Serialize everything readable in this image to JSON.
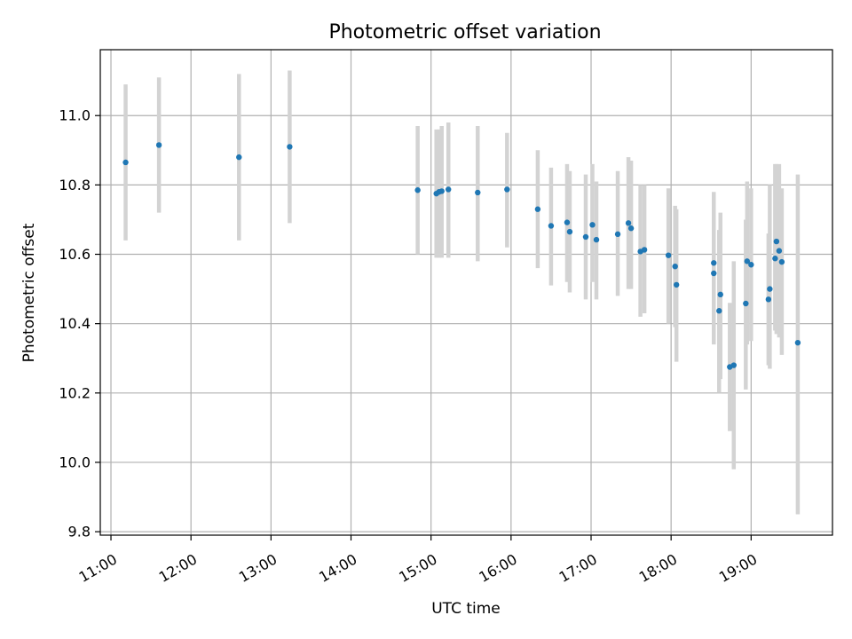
{
  "chart_data": {
    "type": "scatter",
    "title": "Photometric offset variation",
    "xlabel": "UTC time",
    "ylabel": "Photometric offset",
    "x_ticks": [
      "11:00",
      "12:00",
      "13:00",
      "14:00",
      "15:00",
      "16:00",
      "17:00",
      "18:00",
      "19:00"
    ],
    "y_ticks": [
      "9.8",
      "10.0",
      "10.2",
      "10.4",
      "10.6",
      "10.8",
      "11.0"
    ],
    "xlim": [
      "10:52",
      "20:01"
    ],
    "ylim": [
      9.79,
      11.19
    ],
    "grid": true,
    "colors": {
      "points": "#1f77b4",
      "errorbars": "#d3d3d3"
    },
    "series": [
      {
        "x": [
          "11:11",
          "11:36",
          "12:36",
          "13:14",
          "14:50",
          "15:04",
          "15:06",
          "15:08",
          "15:13",
          "15:35",
          "15:57",
          "16:20",
          "16:30",
          "16:42",
          "16:44",
          "16:56",
          "17:01",
          "17:04",
          "17:20",
          "17:28",
          "17:30",
          "17:37",
          "17:40",
          "17:58",
          "18:03",
          "18:04",
          "18:32",
          "18:32",
          "18:36",
          "18:37",
          "18:44",
          "18:47",
          "18:56",
          "18:57",
          "19:00",
          "19:13",
          "19:14",
          "19:18",
          "19:19",
          "19:21",
          "19:23",
          "19:35"
        ],
        "y": [
          10.865,
          10.915,
          10.88,
          10.91,
          10.785,
          10.775,
          10.78,
          10.782,
          10.787,
          10.778,
          10.787,
          10.73,
          10.682,
          10.692,
          10.665,
          10.65,
          10.685,
          10.642,
          10.658,
          10.69,
          10.675,
          10.608,
          10.613,
          10.597,
          10.565,
          10.512,
          10.575,
          10.545,
          10.437,
          10.484,
          10.275,
          10.28,
          10.458,
          10.58,
          10.57,
          10.47,
          10.5,
          10.588,
          10.637,
          10.61,
          10.578,
          10.345
        ],
        "yerr_low": [
          10.64,
          10.72,
          10.64,
          10.69,
          10.6,
          10.59,
          10.59,
          10.59,
          10.59,
          10.58,
          10.62,
          10.56,
          10.51,
          10.52,
          10.49,
          10.47,
          10.52,
          10.47,
          10.48,
          10.5,
          10.5,
          10.42,
          10.43,
          10.4,
          10.39,
          10.29,
          10.36,
          10.34,
          10.2,
          10.24,
          10.09,
          9.98,
          10.21,
          10.34,
          10.35,
          10.28,
          10.27,
          10.38,
          10.37,
          10.36,
          10.31,
          9.85
        ],
        "yerr_high": [
          11.09,
          11.11,
          11.12,
          11.13,
          10.97,
          10.96,
          10.96,
          10.97,
          10.98,
          10.97,
          10.95,
          10.9,
          10.85,
          10.86,
          10.84,
          10.83,
          10.86,
          10.81,
          10.84,
          10.88,
          10.87,
          10.8,
          10.8,
          10.79,
          10.74,
          10.73,
          10.78,
          10.75,
          10.67,
          10.72,
          10.46,
          10.58,
          10.7,
          10.81,
          10.79,
          10.66,
          10.8,
          10.86,
          10.86,
          10.86,
          10.79,
          10.83
        ]
      }
    ]
  }
}
